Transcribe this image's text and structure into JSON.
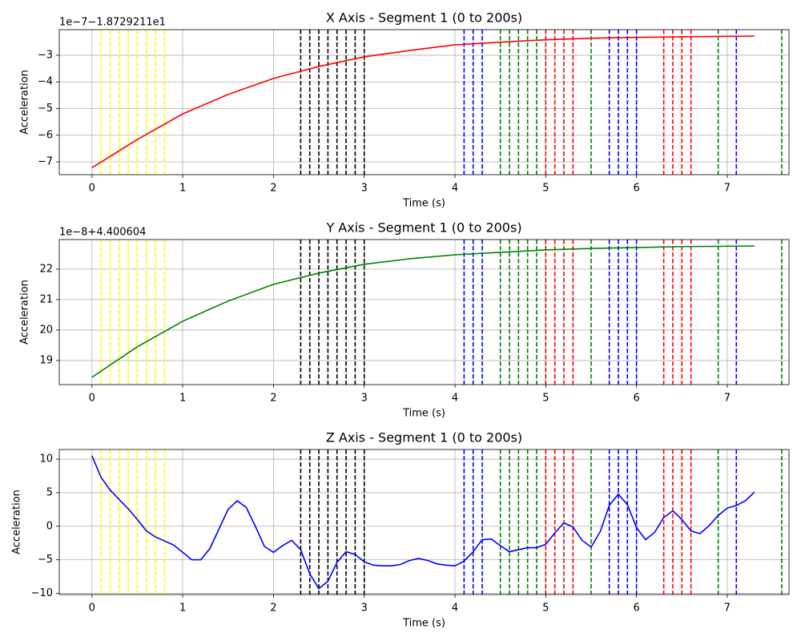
{
  "chart_data": [
    {
      "type": "line",
      "title": "X Axis - Segment 1 (0 to 200s)",
      "offset_text": "1e−7−1.8729211e1",
      "xlabel": "Time (s)",
      "ylabel": "Acceleration",
      "x": [
        0,
        0.5,
        1,
        1.5,
        2,
        2.5,
        3,
        3.5,
        4,
        4.5,
        5,
        5.5,
        6,
        6.5,
        7,
        7.3
      ],
      "series": [
        {
          "name": "X",
          "color": "#ff0000",
          "values": [
            -7.22,
            -6.16,
            -5.2,
            -4.47,
            -3.87,
            -3.42,
            -3.06,
            -2.82,
            -2.61,
            -2.51,
            -2.42,
            -2.36,
            -2.33,
            -2.31,
            -2.29,
            -2.28
          ]
        }
      ],
      "xlim": [
        -0.36,
        7.68
      ],
      "xticks": [
        0,
        1,
        2,
        3,
        4,
        5,
        6,
        7
      ],
      "ylim": [
        -7.48,
        -2.04
      ],
      "yticks": [
        {
          "value": -7,
          "label": "−7"
        },
        {
          "value": -6,
          "label": "−6"
        },
        {
          "value": -5,
          "label": "−5"
        },
        {
          "value": -4,
          "label": "−4"
        },
        {
          "value": -3,
          "label": "−3"
        }
      ],
      "grid": true,
      "vlines": [
        {
          "color": "#ffff00",
          "x": [
            0.1,
            0.2,
            0.3,
            0.4,
            0.5,
            0.6,
            0.7,
            0.8
          ]
        },
        {
          "color": "#000000",
          "x": [
            2.3,
            2.4,
            2.5,
            2.6,
            2.7,
            2.8,
            2.9,
            3.0
          ]
        },
        {
          "color": "#0000ff",
          "x": [
            4.1,
            4.2,
            4.3,
            5.7,
            5.8,
            5.9,
            6.0,
            7.1
          ]
        },
        {
          "color": "#008000",
          "x": [
            4.5,
            4.6,
            4.7,
            4.8,
            4.9,
            5.5,
            6.9,
            7.6
          ]
        },
        {
          "color": "#ff0000",
          "x": [
            5.0,
            5.1,
            5.2,
            5.3,
            6.3,
            6.4,
            6.5,
            6.6
          ]
        }
      ]
    },
    {
      "type": "line",
      "title": "Y Axis - Segment 1 (0 to 200s)",
      "offset_text": "1e−8+4.400604",
      "xlabel": "Time (s)",
      "ylabel": "Acceleration",
      "x": [
        0,
        0.5,
        1,
        1.5,
        2,
        2.5,
        3,
        3.5,
        4,
        4.5,
        5,
        5.5,
        6,
        6.5,
        7,
        7.3
      ],
      "series": [
        {
          "name": "Y",
          "color": "#008000",
          "values": [
            18.45,
            19.45,
            20.29,
            20.95,
            21.5,
            21.87,
            22.16,
            22.34,
            22.47,
            22.55,
            22.63,
            22.68,
            22.71,
            22.74,
            22.75,
            22.76
          ]
        }
      ],
      "xlim": [
        -0.36,
        7.68
      ],
      "xticks": [
        0,
        1,
        2,
        3,
        4,
        5,
        6,
        7
      ],
      "ylim": [
        18.21,
        22.97
      ],
      "yticks": [
        19,
        20,
        21,
        22
      ],
      "grid": true,
      "vlines": [
        {
          "color": "#ffff00",
          "x": [
            0.1,
            0.2,
            0.3,
            0.4,
            0.5,
            0.6,
            0.7,
            0.8
          ]
        },
        {
          "color": "#000000",
          "x": [
            2.3,
            2.4,
            2.5,
            2.6,
            2.7,
            2.8,
            2.9,
            3.0
          ]
        },
        {
          "color": "#0000ff",
          "x": [
            4.1,
            4.2,
            4.3,
            5.7,
            5.8,
            5.9,
            6.0,
            7.1
          ]
        },
        {
          "color": "#008000",
          "x": [
            4.5,
            4.6,
            4.7,
            4.8,
            4.9,
            5.5,
            6.9,
            7.6
          ]
        },
        {
          "color": "#ff0000",
          "x": [
            5.0,
            5.1,
            5.2,
            5.3,
            6.3,
            6.4,
            6.5,
            6.6
          ]
        }
      ]
    },
    {
      "type": "line",
      "title": "Z Axis - Segment 1 (0 to 200s)",
      "xlabel": "Time (s)",
      "ylabel": "Acceleration",
      "x": [
        0,
        0.1,
        0.2,
        0.3,
        0.4,
        0.5,
        0.6,
        0.7,
        0.8,
        0.9,
        1.0,
        1.1,
        1.2,
        1.3,
        1.4,
        1.5,
        1.6,
        1.7,
        1.8,
        1.9,
        2.0,
        2.1,
        2.2,
        2.3,
        2.4,
        2.5,
        2.6,
        2.7,
        2.8,
        2.9,
        3.0,
        3.1,
        3.2,
        3.3,
        3.4,
        3.5,
        3.6,
        3.7,
        3.8,
        3.9,
        4.0,
        4.1,
        4.2,
        4.3,
        4.4,
        4.5,
        4.6,
        4.7,
        4.8,
        4.9,
        5.0,
        5.1,
        5.2,
        5.3,
        5.4,
        5.5,
        5.6,
        5.7,
        5.8,
        5.9,
        6.0,
        6.1,
        6.2,
        6.3,
        6.4,
        6.5,
        6.6,
        6.7,
        6.8,
        6.9,
        7.0,
        7.1,
        7.2,
        7.3
      ],
      "series": [
        {
          "name": "Z",
          "color": "#0000ff",
          "values": [
            10.5,
            7.3,
            5.4,
            4.0,
            2.6,
            1.0,
            -0.7,
            -1.6,
            -2.2,
            -2.8,
            -3.9,
            -5.0,
            -5.0,
            -3.3,
            -0.4,
            2.5,
            3.8,
            2.8,
            0,
            -3.0,
            -3.9,
            -2.9,
            -2.1,
            -3.5,
            -7.1,
            -9.3,
            -8.2,
            -5.4,
            -3.8,
            -4.2,
            -5.3,
            -5.8,
            -5.9,
            -5.9,
            -5.7,
            -5.1,
            -4.8,
            -5.1,
            -5.6,
            -5.8,
            -5.9,
            -5.2,
            -3.8,
            -2.0,
            -1.9,
            -2.9,
            -3.8,
            -3.5,
            -3.2,
            -3.2,
            -2.7,
            -1.0,
            0.5,
            -0.1,
            -2.1,
            -3.1,
            -0.8,
            3.1,
            4.8,
            3.2,
            -0.2,
            -2.0,
            -0.9,
            1.3,
            2.3,
            1.0,
            -0.7,
            -1.1,
            0.1,
            1.6,
            2.7,
            3.1,
            3.8,
            5.1
          ]
        }
      ],
      "xlim": [
        -0.36,
        7.68
      ],
      "xticks": [
        0,
        1,
        2,
        3,
        4,
        5,
        6,
        7
      ],
      "ylim": [
        -10.18,
        11.44
      ],
      "yticks": [
        {
          "value": -10,
          "label": "−10"
        },
        {
          "value": -5,
          "label": "−5"
        },
        0,
        5,
        10
      ],
      "grid": true,
      "vlines": [
        {
          "color": "#ffff00",
          "x": [
            0.1,
            0.2,
            0.3,
            0.4,
            0.5,
            0.6,
            0.7,
            0.8
          ]
        },
        {
          "color": "#000000",
          "x": [
            2.3,
            2.4,
            2.5,
            2.6,
            2.7,
            2.8,
            2.9,
            3.0
          ]
        },
        {
          "color": "#0000ff",
          "x": [
            4.1,
            4.2,
            4.3,
            5.7,
            5.8,
            5.9,
            6.0,
            7.1
          ]
        },
        {
          "color": "#008000",
          "x": [
            4.5,
            4.6,
            4.7,
            4.8,
            4.9,
            5.5,
            6.9,
            7.6
          ]
        },
        {
          "color": "#ff0000",
          "x": [
            5.0,
            5.1,
            5.2,
            5.3,
            6.3,
            6.4,
            6.5,
            6.6
          ]
        }
      ]
    }
  ]
}
